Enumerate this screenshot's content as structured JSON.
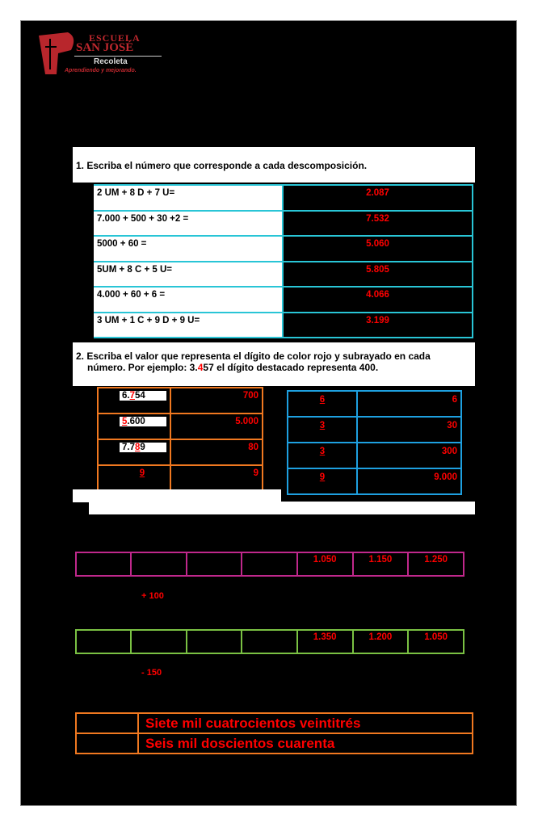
{
  "logo": {
    "line1": "ESCUELA",
    "line2": "SAN JOSÉ",
    "line3": "Recoleta",
    "tagline": "Aprendiendo y mejorando."
  },
  "q1": {
    "title": "1.  Escriba el número que corresponde a cada descomposición.",
    "rows": [
      {
        "expr": "2 UM + 8 D + 7 U=",
        "answer": "2.087"
      },
      {
        "expr": "7.000 + 500 + 30 +2 =",
        "answer": "7.532"
      },
      {
        "expr": "5000 + 60 =",
        "answer": "5.060"
      },
      {
        "expr": "5UM + 8 C + 5 U=",
        "answer": "5.805"
      },
      {
        "expr": "4.000 + 60 + 6 =",
        "answer": "4.066"
      },
      {
        "expr": "3 UM + 1 C + 9 D + 9 U=",
        "answer": "3.199"
      }
    ]
  },
  "q2": {
    "title_a": "2.  Escriba el valor que representa el dígito de color rojo y subrayado en cada",
    "title_b": "número. Por ejemplo: 3.",
    "title_digit": "4",
    "title_c": "57 el dígito destacado representa 400.",
    "left": [
      {
        "pre": "6.",
        "digit": "7",
        "post": "54",
        "value": "700"
      },
      {
        "pre": "",
        "digit": "5",
        "post": ".600",
        "value": "5.000"
      },
      {
        "pre": "7.7",
        "digit": "8",
        "post": "9",
        "value": "80"
      },
      {
        "pre": "",
        "digit": "9",
        "post": "",
        "value": "9"
      }
    ],
    "right": [
      {
        "digit": "6",
        "value": "6"
      },
      {
        "digit": "3",
        "value": "30"
      },
      {
        "digit": "3",
        "value": "300"
      },
      {
        "digit": "9",
        "value": "9.000"
      }
    ]
  },
  "seq1": {
    "cells": [
      "",
      "",
      "",
      "",
      "1.050",
      "1.150",
      "1.250"
    ],
    "rule": "+ 100",
    "color": "#c0288c"
  },
  "seq2": {
    "cells": [
      "",
      "",
      "",
      "",
      "1.350",
      "1.200",
      "1.050"
    ],
    "rule": "- 150",
    "color": "#7ac143"
  },
  "words": [
    {
      "num": "",
      "text": "Siete mil cuatrocientos veintitrés"
    },
    {
      "num": "",
      "text": "Seis mil doscientos cuarenta"
    }
  ]
}
